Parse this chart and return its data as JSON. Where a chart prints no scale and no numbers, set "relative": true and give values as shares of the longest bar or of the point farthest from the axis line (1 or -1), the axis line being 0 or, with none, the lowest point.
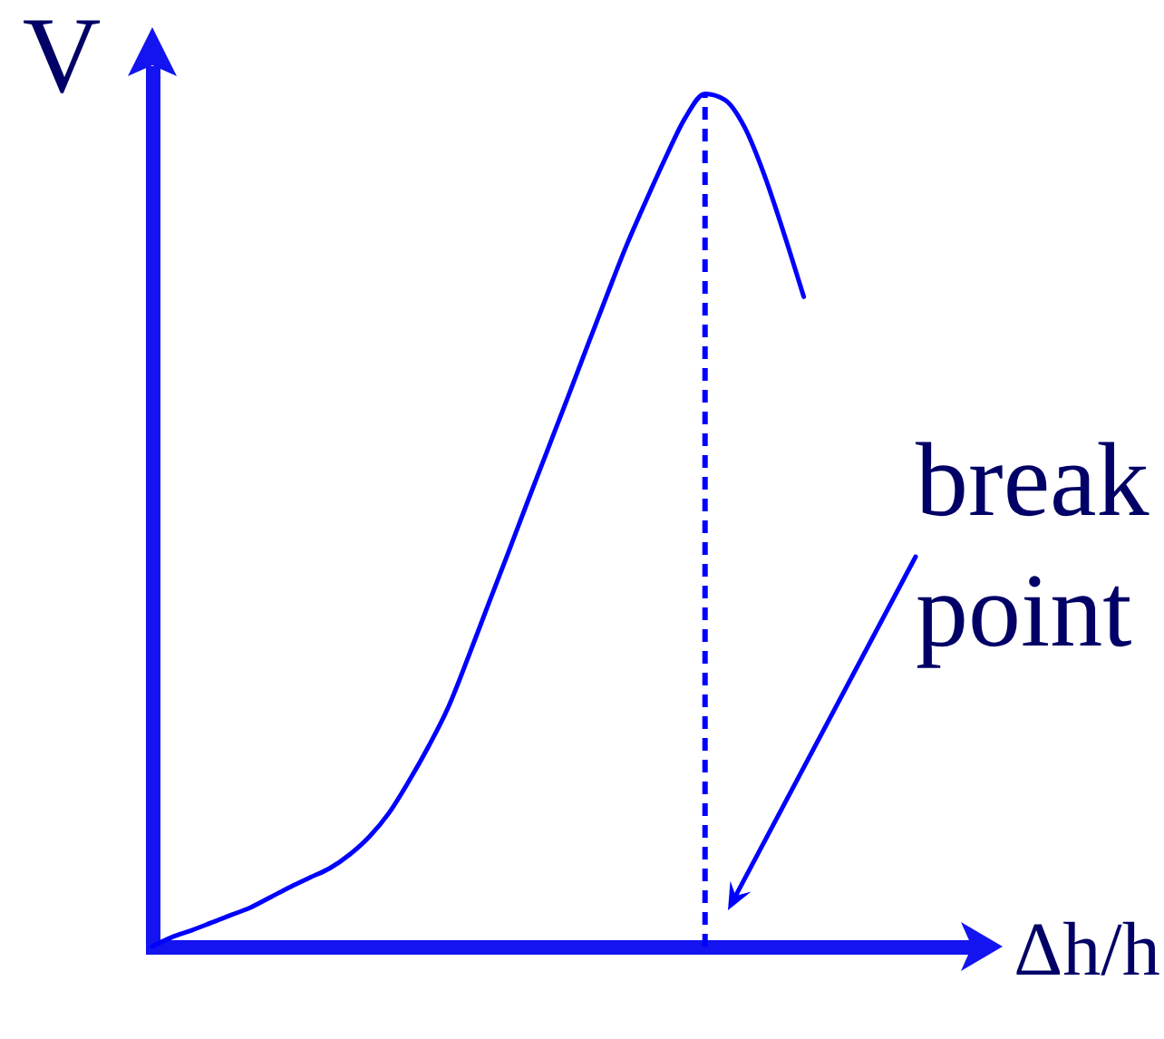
{
  "chart_data": {
    "type": "line",
    "xlabel": "Δh/h",
    "ylabel": "V",
    "relative": true,
    "categories": [
      null,
      null,
      null,
      null,
      null,
      null,
      null,
      null,
      null,
      null,
      null,
      null,
      null,
      null,
      null,
      null,
      null,
      null,
      null,
      null,
      null,
      null,
      null,
      null,
      null,
      null,
      null,
      null,
      null,
      null,
      null,
      null,
      null,
      null
    ],
    "values": [
      0,
      0.011,
      0.019,
      0.028,
      0.037,
      0.046,
      0.058,
      0.07,
      0.081,
      0.092,
      0.108,
      0.129,
      0.157,
      0.194,
      0.235,
      0.281,
      0.339,
      0.4,
      0.46,
      0.521,
      0.581,
      0.641,
      0.702,
      0.762,
      0.821,
      0.874,
      0.925,
      0.972,
      1,
      0.993,
      0.961,
      0.905,
      0.836,
      0.762
    ],
    "color": "#0000ff",
    "annotations": [
      "break point"
    ]
  }
}
